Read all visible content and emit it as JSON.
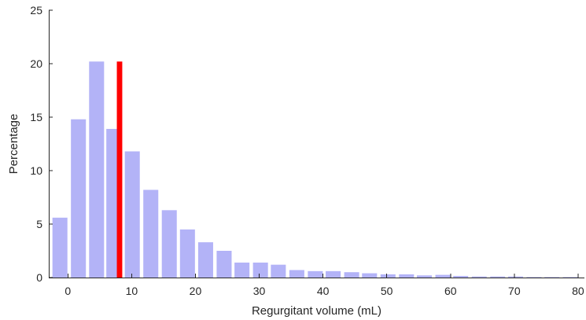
{
  "chart_data": {
    "type": "bar",
    "xlabel": "Regurgitant volume (mL)",
    "ylabel": "Percentage",
    "xlim": [
      -3,
      81
    ],
    "ylim": [
      0,
      25
    ],
    "xticks": [
      0,
      10,
      20,
      30,
      40,
      50,
      60,
      70,
      80
    ],
    "yticks": [
      0,
      5,
      10,
      15,
      20,
      25
    ],
    "grid": false,
    "bar_color": "#b3b3f7",
    "marker_color": "#ff0000",
    "bars": [
      {
        "x": -1.25,
        "value": 5.6
      },
      {
        "x": 1.65,
        "value": 14.8
      },
      {
        "x": 4.5,
        "value": 20.2
      },
      {
        "x": 7.2,
        "value": 13.9
      },
      {
        "x": 10.1,
        "value": 11.8
      },
      {
        "x": 13.0,
        "value": 8.2
      },
      {
        "x": 15.9,
        "value": 6.3
      },
      {
        "x": 18.75,
        "value": 4.5
      },
      {
        "x": 21.6,
        "value": 3.3
      },
      {
        "x": 24.5,
        "value": 2.5
      },
      {
        "x": 27.3,
        "value": 1.4
      },
      {
        "x": 30.2,
        "value": 1.4
      },
      {
        "x": 33.0,
        "value": 1.2
      },
      {
        "x": 35.9,
        "value": 0.7
      },
      {
        "x": 38.8,
        "value": 0.6
      },
      {
        "x": 41.6,
        "value": 0.6
      },
      {
        "x": 44.5,
        "value": 0.5
      },
      {
        "x": 47.3,
        "value": 0.4
      },
      {
        "x": 50.2,
        "value": 0.3
      },
      {
        "x": 53.1,
        "value": 0.3
      },
      {
        "x": 55.9,
        "value": 0.2
      },
      {
        "x": 58.8,
        "value": 0.25
      },
      {
        "x": 61.6,
        "value": 0.15
      },
      {
        "x": 64.5,
        "value": 0.1
      },
      {
        "x": 67.4,
        "value": 0.1
      },
      {
        "x": 70.2,
        "value": 0.1
      },
      {
        "x": 73.1,
        "value": 0.05
      },
      {
        "x": 75.9,
        "value": 0.05
      },
      {
        "x": 78.8,
        "value": 0.05
      }
    ],
    "bar_width": 2.35,
    "marker": {
      "x": 8.1,
      "value": 20.2,
      "width": 0.85
    }
  }
}
